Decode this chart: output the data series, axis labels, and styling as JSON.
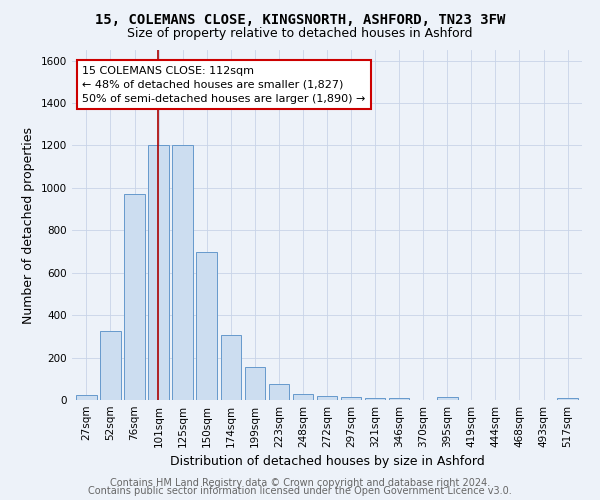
{
  "title": "15, COLEMANS CLOSE, KINGSNORTH, ASHFORD, TN23 3FW",
  "subtitle": "Size of property relative to detached houses in Ashford",
  "xlabel": "Distribution of detached houses by size in Ashford",
  "ylabel": "Number of detached properties",
  "bar_labels": [
    "27sqm",
    "52sqm",
    "76sqm",
    "101sqm",
    "125sqm",
    "150sqm",
    "174sqm",
    "199sqm",
    "223sqm",
    "248sqm",
    "272sqm",
    "297sqm",
    "321sqm",
    "346sqm",
    "370sqm",
    "395sqm",
    "419sqm",
    "444sqm",
    "468sqm",
    "493sqm",
    "517sqm"
  ],
  "bar_values": [
    25,
    325,
    970,
    1200,
    1200,
    700,
    305,
    155,
    75,
    30,
    20,
    12,
    10,
    10,
    0,
    15,
    0,
    0,
    0,
    0,
    10
  ],
  "bar_color": "#ccddf0",
  "bar_edgecolor": "#6699cc",
  "vline_x_index": 3,
  "vline_color": "#aa0000",
  "annotation_line1": "15 COLEMANS CLOSE: 112sqm",
  "annotation_line2": "← 48% of detached houses are smaller (1,827)",
  "annotation_line3": "50% of semi-detached houses are larger (1,890) →",
  "annotation_box_color": "#ffffff",
  "annotation_box_edgecolor": "#cc0000",
  "ylim": [
    0,
    1650
  ],
  "yticks": [
    0,
    200,
    400,
    600,
    800,
    1000,
    1200,
    1400,
    1600
  ],
  "footer_line1": "Contains HM Land Registry data © Crown copyright and database right 2024.",
  "footer_line2": "Contains public sector information licensed under the Open Government Licence v3.0.",
  "bg_color": "#edf2f9",
  "plot_bg_color": "#edf2f9",
  "title_fontsize": 10,
  "subtitle_fontsize": 9,
  "axis_label_fontsize": 9,
  "tick_fontsize": 7.5,
  "annotation_fontsize": 8,
  "footer_fontsize": 7
}
